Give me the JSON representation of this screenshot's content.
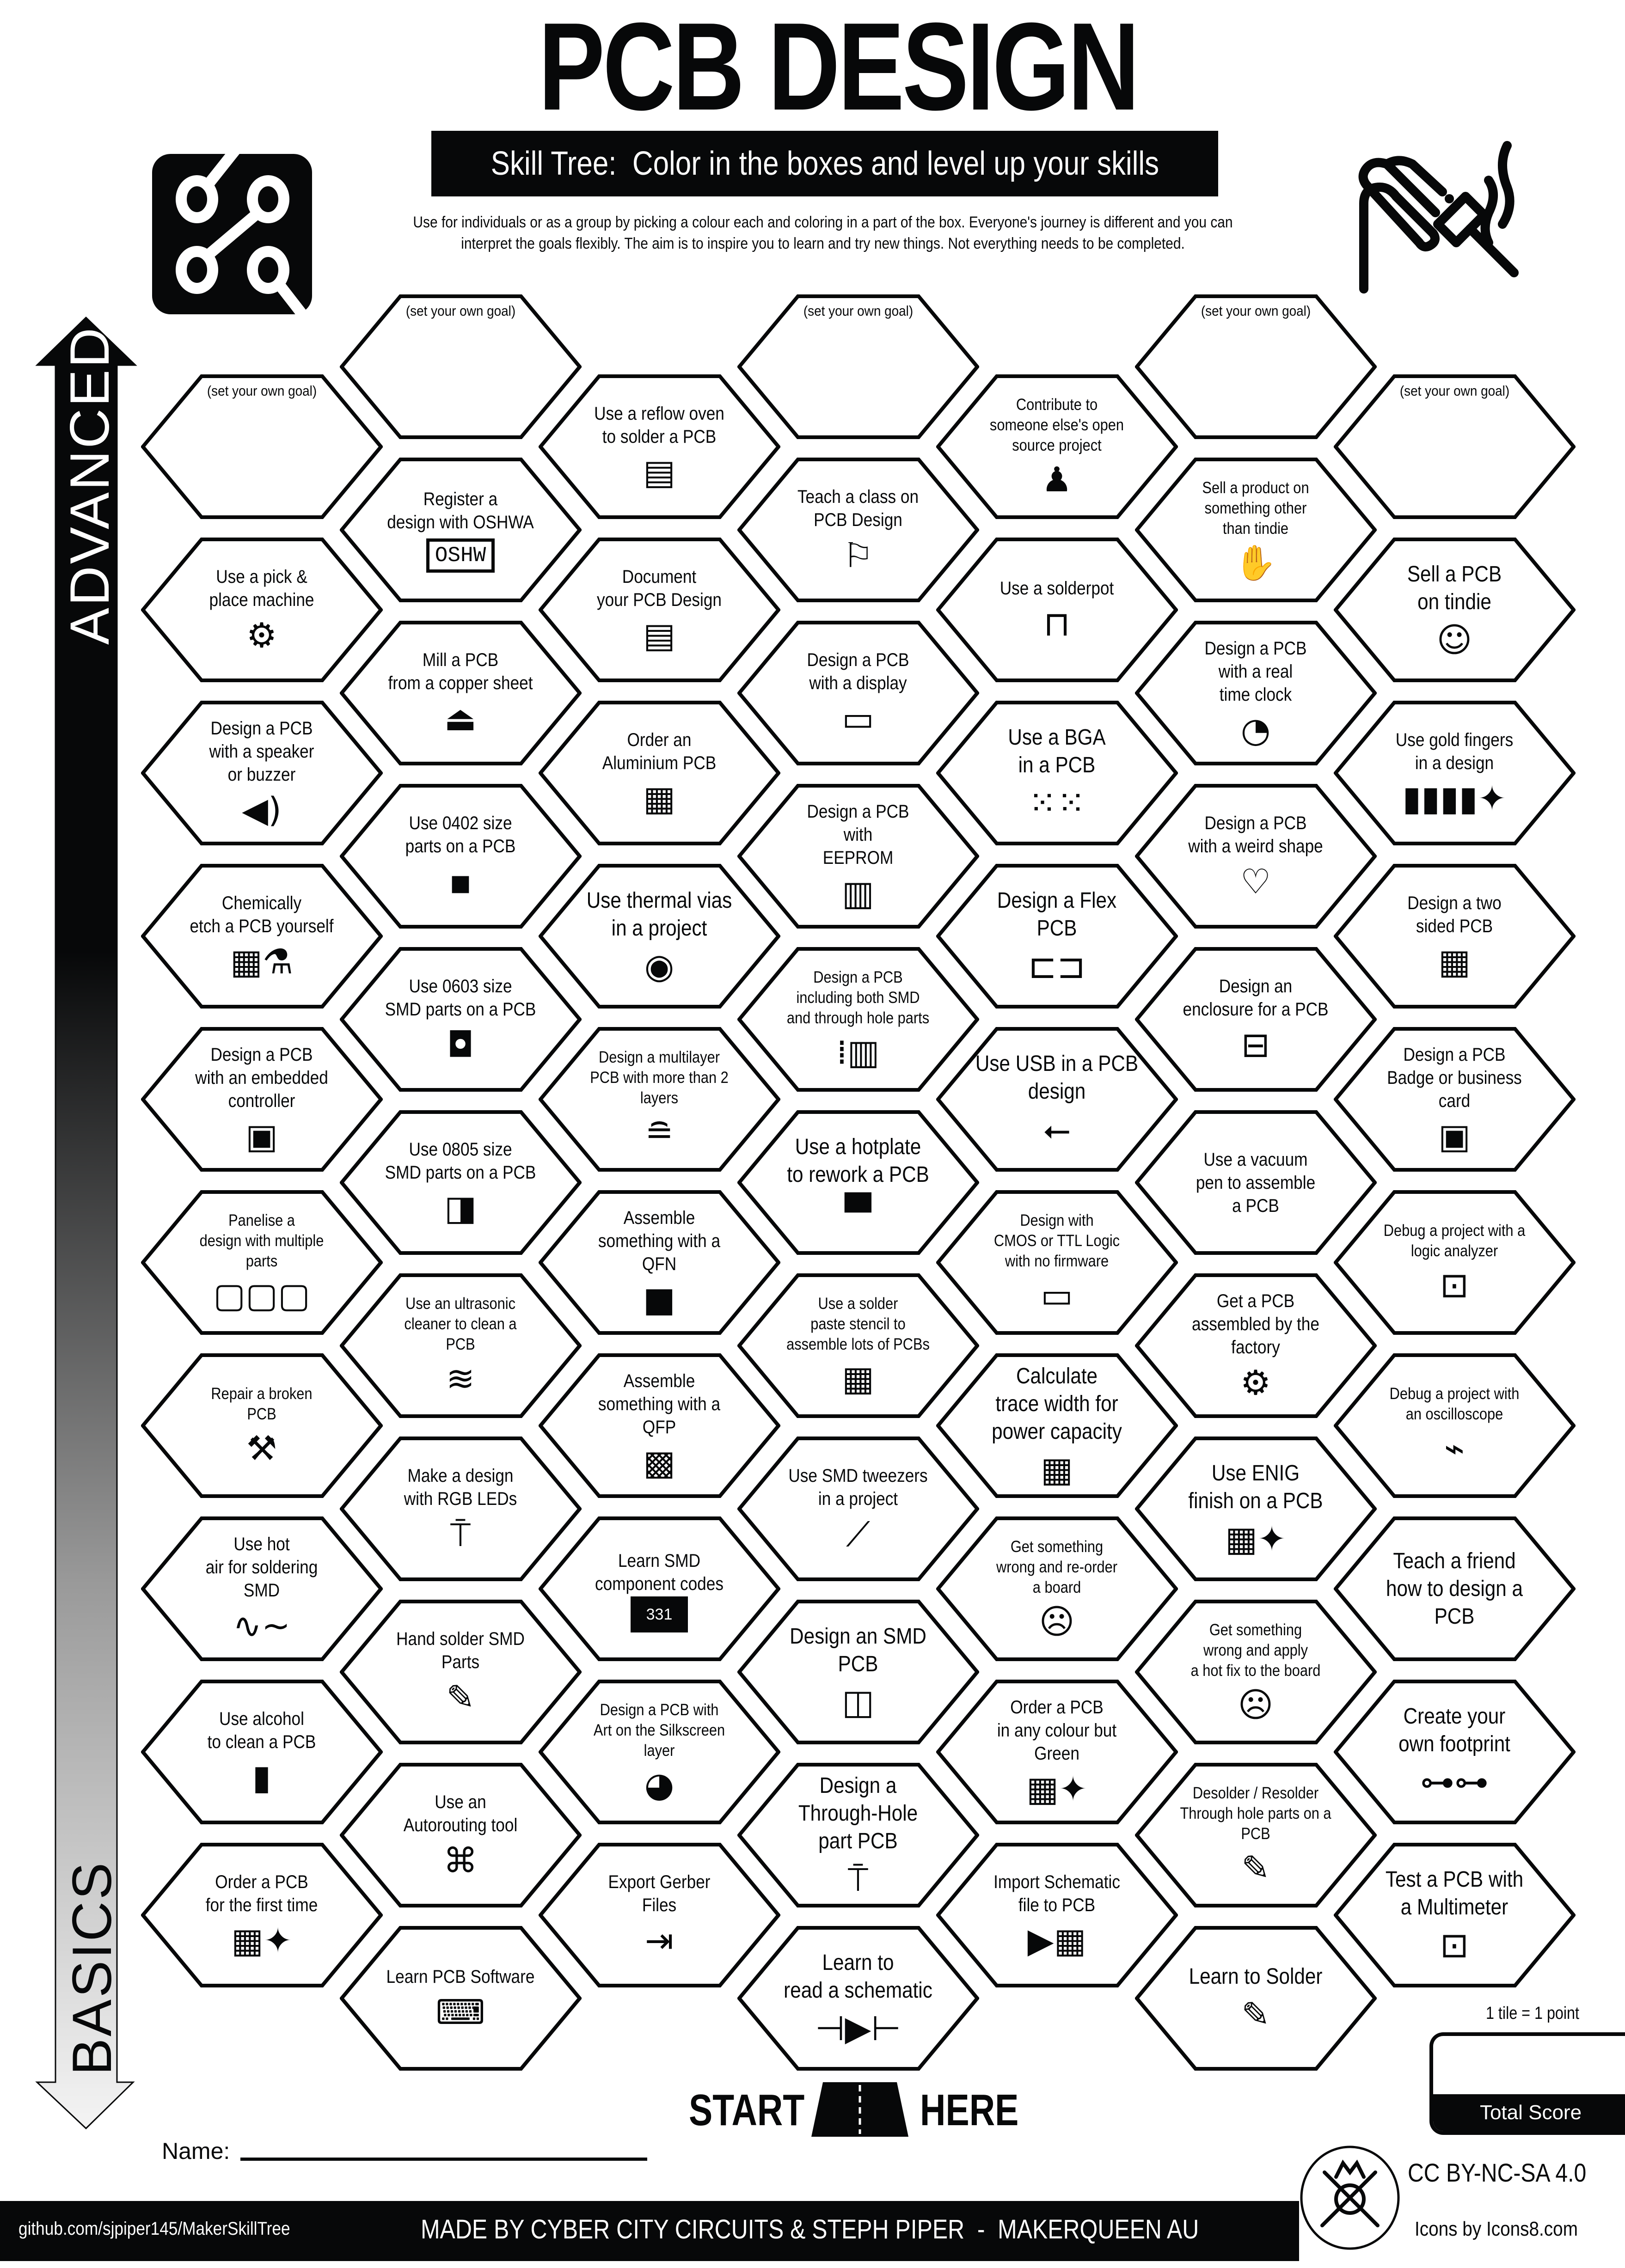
{
  "header": {
    "title": "PCB DESIGN",
    "subtitle": "Skill Tree:  Color in the boxes and level up your skills",
    "intro_line1": "Use for individuals or as a group by picking a colour each and coloring in a part of the box.  Everyone's journey is different and you can",
    "intro_line2": "interpret the goals flexibly.  The aim is to inspire you to learn and try new things. Not everything needs to be completed.",
    "logo_icon": "pcb-circuit-icon",
    "corner_icon": "soldering-iron-icon"
  },
  "axis": {
    "top_label": "ADVANCED",
    "bottom_label": "BASICS"
  },
  "goal_label": "(set your own goal)",
  "columns": [
    [
      {
        "goal": true
      },
      {
        "label": "Use a pick &\nplace machine",
        "icon": "robot-arm-icon"
      },
      {
        "label": "Design a PCB\nwith a speaker\nor buzzer",
        "icon": "speaker-icon"
      },
      {
        "label": "Chemically\netch a PCB yourself",
        "icon": "flask-icon"
      },
      {
        "label": "Design a PCB\nwith an embedded\ncontroller",
        "icon": "microchip-icon"
      },
      {
        "label": "Panelise a\ndesign with multiple\nparts",
        "icon": "panel-icon"
      },
      {
        "label": "Repair a broken\nPCB",
        "icon": "tools-icon"
      },
      {
        "label": "Use hot\nair for soldering\nSMD",
        "icon": "hot-air-icon"
      },
      {
        "label": "Use alcohol\nto clean a PCB",
        "icon": "bottle-icon"
      },
      {
        "label": "Order a PCB\nfor the first time",
        "icon": "pcb-party-icon"
      }
    ],
    [
      {
        "goal": true
      },
      {
        "label": "Register a\ndesign with OSHWA",
        "icon": "oshw-icon",
        "icon_text": "OSHW"
      },
      {
        "label": "Mill a PCB\nfrom a copper sheet",
        "icon": "mill-icon"
      },
      {
        "label": "Use 0402 size\nparts on a PCB",
        "icon": "smd-0402-icon"
      },
      {
        "label": "Use 0603 size\nSMD parts on a PCB",
        "icon": "smd-0603-icon"
      },
      {
        "label": "Use 0805 size\nSMD parts on a PCB",
        "icon": "smd-0805-icon"
      },
      {
        "label": "Use an ultrasonic\ncleaner to clean a\nPCB",
        "icon": "ultrasonic-icon"
      },
      {
        "label": "Make a design\nwith RGB LEDs",
        "icon": "led-icon"
      },
      {
        "label": "Hand solder SMD\nParts",
        "icon": "soldering-iron-icon"
      },
      {
        "label": "Use an\nAutorouting tool",
        "icon": "autoroute-icon"
      },
      {
        "label": "Learn PCB Software",
        "icon": "laptop-gear-icon"
      }
    ],
    [
      {
        "label": "Use a reflow oven\nto solder a PCB",
        "icon": "oven-icon"
      },
      {
        "label": "Document\nyour PCB Design",
        "icon": "document-icon"
      },
      {
        "label": "Order an\nAluminium PCB",
        "icon": "pcb-icon"
      },
      {
        "label": "Use thermal vias\nin a project",
        "icon": "via-icon"
      },
      {
        "label": "Design a multilayer\nPCB with more than 2\nlayers",
        "icon": "layers-icon"
      },
      {
        "label": "Assemble\nsomething  with a\nQFN",
        "icon": "qfn-icon"
      },
      {
        "label": "Assemble\nsomething  with a\nQFP",
        "icon": "qfp-icon"
      },
      {
        "label": "Learn SMD\ncomponent codes",
        "icon": "smd-resistor-icon",
        "icon_text": "331"
      },
      {
        "label": "Design a PCB with\nArt on the Silkscreen\nlayer",
        "icon": "palette-icon"
      },
      {
        "label": "Export Gerber\nFiles",
        "icon": "export-icon"
      }
    ],
    [
      {
        "goal": true
      },
      {
        "label": "Teach a class on\nPCB Design",
        "icon": "teacher-icon"
      },
      {
        "label": "Design a PCB\nwith a display",
        "icon": "display-icon"
      },
      {
        "label": "Design a PCB\nwith\nEEPROM",
        "icon": "memory-chip-icon"
      },
      {
        "label": "Design a PCB\nincluding both SMD\nand through hole parts",
        "icon": "dip-chip-icon"
      },
      {
        "label": "Use a hotplate\nto rework a PCB",
        "icon": "hotplate-icon"
      },
      {
        "label": "Use a solder\npaste stencil to\nassemble lots of PCBs",
        "icon": "stencil-icon"
      },
      {
        "label": "Use SMD tweezers\nin a project",
        "icon": "tweezers-icon"
      },
      {
        "label": "Design an SMD\nPCB",
        "icon": "smd-component-icon"
      },
      {
        "label": "Design a\nThrough-Hole\npart PCB",
        "icon": "led-icon"
      },
      {
        "label": "Learn to\nread a schematic",
        "icon": "diode-icon"
      }
    ],
    [
      {
        "label": "Contribute to\nsomeone else's open\nsource project",
        "icon": "contributor-icon"
      },
      {
        "label": "Use a solderpot",
        "icon": "solderpot-icon"
      },
      {
        "label": "Use a BGA\nin a PCB",
        "icon": "bga-icon"
      },
      {
        "label": "Design a Flex\nPCB",
        "icon": "flex-pcb-icon"
      },
      {
        "label": "Use USB in a PCB\ndesign",
        "icon": "usb-icon"
      },
      {
        "label": "Design with\nCMOS or TTL Logic\nwith no firmware",
        "icon": "logic-chip-icon"
      },
      {
        "label": "Calculate\ntrace width for\npower capacity",
        "icon": "pcb-icon"
      },
      {
        "label": "Get something\nwrong and re-order\na board",
        "icon": "facepalm-icon"
      },
      {
        "label": "Order a PCB\nin any colour but\nGreen",
        "icon": "pcb-sparkle-icon"
      },
      {
        "label": "Import Schematic\nfile to PCB",
        "icon": "diode-pcb-icon"
      }
    ],
    [
      {
        "goal": true
      },
      {
        "label": "Sell a product on\nsomething other\nthan tindie",
        "icon": "sell-product-icon"
      },
      {
        "label": "Design a PCB\nwith a real\ntime clock",
        "icon": "clock-icon"
      },
      {
        "label": "Design a PCB\nwith a weird shape",
        "icon": "heart-icon"
      },
      {
        "label": "Design an\nenclosure for a PCB",
        "icon": "enclosure-icon"
      },
      {
        "label": "Use a vacuum\npen to assemble\na PCB",
        "icon": "vacuum-pen-icon"
      },
      {
        "label": "Get a PCB\nassembled by the\nfactory",
        "icon": "robot-arm-icon"
      },
      {
        "label": "Use ENIG\nfinish on a PCB",
        "icon": "pcb-sparkle-icon"
      },
      {
        "label": "Get something\nwrong and apply\na hot fix to the board",
        "icon": "facepalm-icon"
      },
      {
        "label": "Desolder / Resolder\nThrough hole parts on a\nPCB",
        "icon": "soldering-iron-icon"
      },
      {
        "label": "Learn to Solder",
        "icon": "soldering-iron-icon"
      }
    ],
    [
      {
        "goal": true
      },
      {
        "label": "Sell a PCB\non tindie",
        "icon": "tindie-dog-icon"
      },
      {
        "label": "Use gold fingers\nin a design",
        "icon": "gold-fingers-icon"
      },
      {
        "label": "Design a two\nsided PCB",
        "icon": "pcb-icon"
      },
      {
        "label": "Design a PCB\nBadge or business\ncard",
        "icon": "badge-icon"
      },
      {
        "label": "Debug a project with a\nlogic analyzer",
        "icon": "multimeter-icon"
      },
      {
        "label": "Debug a project with\nan oscilloscope",
        "icon": "oscilloscope-icon"
      },
      {
        "label": "Teach a friend\nhow to design a\nPCB",
        "icon": "gift-bow-icon"
      },
      {
        "label": "Create your\nown footprint",
        "icon": "footprint-icon"
      },
      {
        "label": "Test a PCB with\na Multimeter",
        "icon": "multimeter-icon"
      }
    ]
  ],
  "start": {
    "left": "START",
    "right": "HERE",
    "icon": "road-icon"
  },
  "name_label": "Name:",
  "score": {
    "note": "1 tile = 1 point",
    "label": "Total Score"
  },
  "license": "CC BY-NC-SA 4.0",
  "footer": {
    "repo": "github.com/sjpiper145/MakerSkillTree",
    "credits": "MADE BY CYBER CITY CIRCUITS & STEPH PIPER  -  MAKERQUEEN AU",
    "icons_credit": "Icons by Icons8.com",
    "badge_icon": "maker-skill-tree-badge-icon"
  },
  "colors": {
    "ink": "#070809",
    "paper": "#ffffff",
    "arrow_light": "#f2f2f2"
  }
}
